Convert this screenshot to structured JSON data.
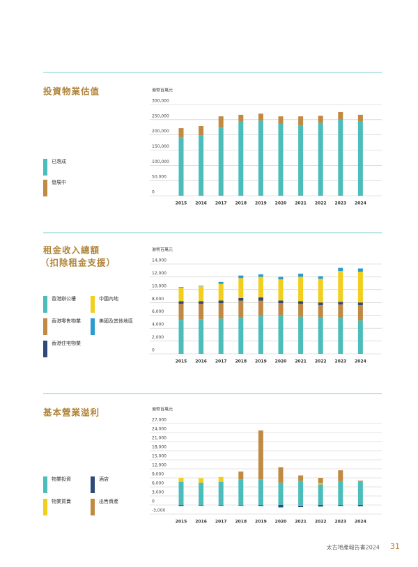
{
  "chart_data": [
    {
      "type": "bar",
      "title": "投資物業估值",
      "unit": "港幣百萬元",
      "categories": [
        "2015",
        "2016",
        "2017",
        "2018",
        "2019",
        "2020",
        "2021",
        "2022",
        "2023",
        "2024"
      ],
      "series": [
        {
          "name": "已落成",
          "color": "#4dbdbc",
          "values": [
            192000,
            199000,
            224000,
            243000,
            247000,
            236000,
            231000,
            240000,
            250000,
            245000
          ]
        },
        {
          "name": "發展中",
          "color": "#c08a45",
          "values": [
            30000,
            30000,
            37000,
            23000,
            23000,
            25000,
            30000,
            23000,
            25000,
            21000
          ]
        }
      ],
      "ylim": [
        0,
        300000
      ],
      "yticks": [
        0,
        {
          "value": 50000,
          "label": "50,000"
        },
        {
          "value": 100000,
          "label": "100,000"
        },
        {
          "value": 150000,
          "label": "150,000"
        },
        {
          "value": 200000,
          "label": "200,000"
        },
        {
          "value": 250000,
          "label": "250,000"
        },
        {
          "value": 300000,
          "label": "300,000"
        }
      ],
      "grid": true
    },
    {
      "type": "bar",
      "title": "租金收入總額",
      "subtitle": "（扣除租金支援）",
      "unit": "港幣百萬元",
      "categories": [
        "2015",
        "2016",
        "2017",
        "2018",
        "2019",
        "2020",
        "2021",
        "2022",
        "2023",
        "2024"
      ],
      "series": [
        {
          "name": "香港辦公樓",
          "color": "#4dbdbc",
          "values": [
            5300,
            5400,
            5500,
            5700,
            5900,
            6000,
            5800,
            5700,
            5600,
            5200
          ]
        },
        {
          "name": "香港零售物業",
          "color": "#c08a45",
          "values": [
            2500,
            2400,
            2400,
            2600,
            2400,
            1900,
            2000,
            1900,
            2100,
            2400
          ]
        },
        {
          "name": "香港住宅物業",
          "color": "#2f4a7a",
          "values": [
            400,
            400,
            400,
            400,
            500,
            400,
            400,
            400,
            400,
            400
          ]
        },
        {
          "name": "中國內地",
          "color": "#f2cf1e",
          "values": [
            2100,
            2300,
            2600,
            3100,
            3200,
            3300,
            3800,
            3700,
            4800,
            4800
          ]
        },
        {
          "name": "美國及其他地區",
          "color": "#2a9bd0",
          "values": [
            100,
            100,
            300,
            400,
            400,
            400,
            500,
            400,
            500,
            500
          ]
        }
      ],
      "ylim": [
        0,
        14000
      ],
      "yticks": [
        0,
        {
          "value": 2000,
          "label": "2,000"
        },
        {
          "value": 4000,
          "label": "4,000"
        },
        {
          "value": 6000,
          "label": "6,000"
        },
        {
          "value": 8000,
          "label": "8,000"
        },
        {
          "value": 10000,
          "label": "10,000"
        },
        {
          "value": 12000,
          "label": "12,000"
        },
        {
          "value": 14000,
          "label": "14,000"
        }
      ],
      "grid": true
    },
    {
      "type": "bar",
      "title": "基本營業溢利",
      "unit": "港幣百萬元",
      "categories": [
        "2015",
        "2016",
        "2017",
        "2018",
        "2019",
        "2020",
        "2021",
        "2022",
        "2023",
        "2024"
      ],
      "series": [
        {
          "name": "物業投資",
          "color": "#4dbdbc",
          "values": [
            7700,
            7400,
            7700,
            8500,
            8500,
            7400,
            8000,
            6800,
            7900,
            7800
          ]
        },
        {
          "name": "物業買賣",
          "color": "#f2cf1e",
          "values": [
            1300,
            1500,
            1600,
            0,
            0,
            0,
            -200,
            400,
            0,
            0
          ]
        },
        {
          "name": "酒店",
          "color": "#2f4a7a",
          "values": [
            -300,
            -200,
            -200,
            -200,
            -300,
            -800,
            -500,
            -500,
            -300,
            -400
          ]
        },
        {
          "name": "出售資產",
          "color": "#c08a45",
          "values": [
            0,
            0,
            0,
            2600,
            16200,
            5100,
            1800,
            1800,
            3600,
            300
          ]
        }
      ],
      "ylim": [
        -3000,
        27000
      ],
      "yticks": [
        {
          "value": -3000,
          "label": "-3,000"
        },
        0,
        {
          "value": 3000,
          "label": "3,000"
        },
        {
          "value": 6000,
          "label": "6,000"
        },
        {
          "value": 9000,
          "label": "9,000"
        },
        {
          "value": 12000,
          "label": "12,000"
        },
        {
          "value": 15000,
          "label": "15,000"
        },
        {
          "value": 18000,
          "label": "18,000"
        },
        {
          "value": 21000,
          "label": "21,000"
        },
        {
          "value": 24000,
          "label": "24,000"
        },
        {
          "value": 27000,
          "label": "27,000"
        }
      ],
      "grid": true
    }
  ],
  "footer": {
    "report": "太古地產報告書2024",
    "page": "31"
  }
}
